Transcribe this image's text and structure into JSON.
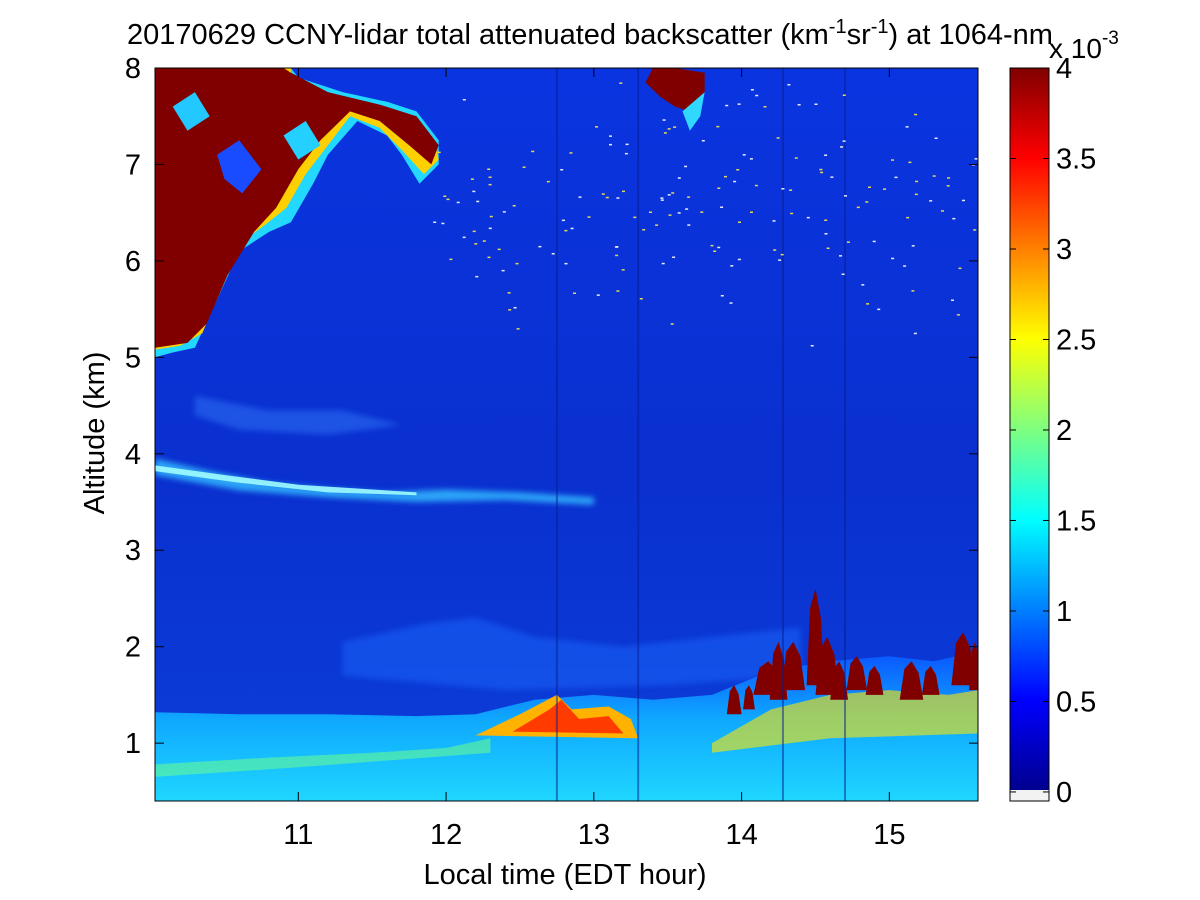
{
  "figure": {
    "title": "20170629 CCNY-lidar total attenuated backscatter (km",
    "title_sup1": "-1",
    "title_mid": "sr",
    "title_sup2": "-1",
    "title_end": ") at 1064-nm"
  },
  "chart_data": {
    "type": "heatmap",
    "title": "20170629 CCNY-lidar total attenuated backscatter (km^-1 sr^-1) at 1064-nm",
    "xlabel": "Local time (EDT hour)",
    "ylabel": "Altitude (km)",
    "xlim": [
      10.03,
      15.6
    ],
    "ylim": [
      0.4,
      8
    ],
    "x_ticks": [
      "11",
      "12",
      "13",
      "14",
      "15"
    ],
    "y_ticks": [
      "1",
      "2",
      "3",
      "4",
      "5",
      "6",
      "7",
      "8"
    ],
    "colorbar": {
      "range": [
        -0.05,
        4
      ],
      "ticks": [
        "0",
        "0.5",
        "1",
        "1.5",
        "2",
        "2.5",
        "3",
        "3.5",
        "4"
      ],
      "exponent_label": "x 10",
      "exponent": "-3",
      "colormap": "jet"
    },
    "features": [
      {
        "name": "boundary-layer aerosol",
        "time": [
          10.03,
          15.6
        ],
        "altitude_top_km": [
          1.2,
          2.0
        ],
        "value_approx": 1.5
      },
      {
        "name": "aerosol layer",
        "time": [
          10.03,
          13.0
        ],
        "altitude_km": [
          3.6,
          3.9
        ],
        "value_approx": 1.0
      },
      {
        "name": "high cloud",
        "time": [
          10.03,
          11.9
        ],
        "altitude_km": [
          5.0,
          8.0
        ],
        "value_approx": 4
      },
      {
        "name": "low clouds",
        "time": [
          13.9,
          15.6
        ],
        "altitude_km": [
          1.3,
          2.6
        ],
        "value_approx": 4
      }
    ]
  }
}
